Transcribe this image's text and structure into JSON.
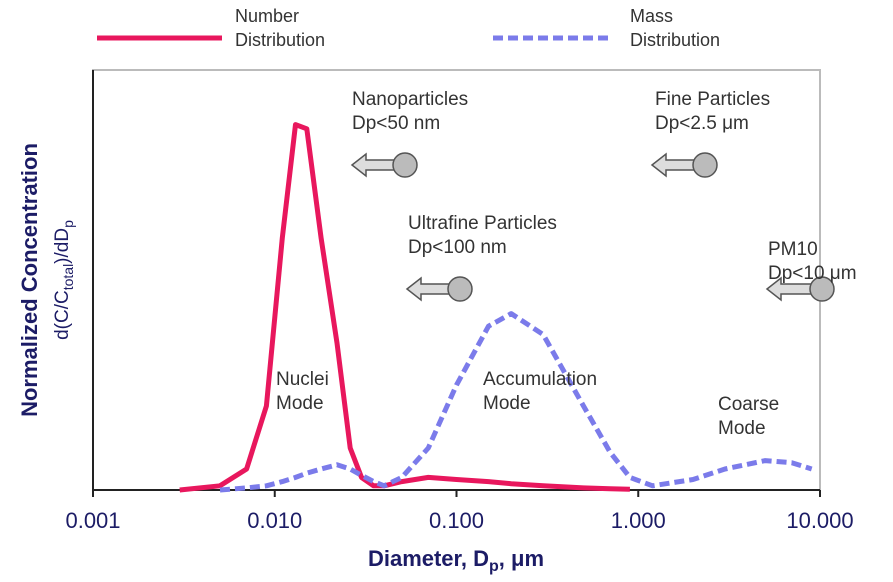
{
  "chart_data": {
    "type": "line",
    "xlabel": [
      "Diameter, D",
      "p",
      ", μm"
    ],
    "ylabel": "Normalized Concentration",
    "ylabel2": [
      "d(C/C",
      "total",
      ")/dD",
      "p"
    ],
    "x": [
      0.003,
      0.005,
      0.007,
      0.009,
      0.011,
      0.013,
      0.015,
      0.018,
      0.022,
      0.026,
      0.03,
      0.035,
      0.04,
      0.05,
      0.07,
      0.1,
      0.15,
      0.2,
      0.3,
      0.5,
      0.7,
      0.9,
      1.2,
      2,
      3,
      5,
      7,
      9
    ],
    "series": [
      {
        "name": "Number\nDistribution",
        "color": "#e8175d",
        "dash": false,
        "values": [
          0,
          0.01,
          0.05,
          0.2,
          0.6,
          0.87,
          0.86,
          0.6,
          0.35,
          0.1,
          0.03,
          0.01,
          0.01,
          0.02,
          0.03,
          0.025,
          0.02,
          0.015,
          0.01,
          0.005,
          0.003,
          0.002,
          null,
          null,
          null,
          null,
          null,
          null
        ]
      },
      {
        "name": "Mass\nDistribution",
        "color": "#7b7bea",
        "dash": true,
        "values": [
          null,
          0,
          0.005,
          0.01,
          0.02,
          0.03,
          0.04,
          0.05,
          0.06,
          0.05,
          0.035,
          0.02,
          0.01,
          0.03,
          0.1,
          0.25,
          0.39,
          0.42,
          0.37,
          0.2,
          0.09,
          0.03,
          0.01,
          0.025,
          0.05,
          0.07,
          0.065,
          0.05
        ]
      }
    ],
    "xlim": [
      0.001,
      10
    ],
    "xticks": [
      0.001,
      {
        "value": 0.01,
        "label": "0.010"
      },
      {
        "value": 0.1,
        "label": "0.100"
      },
      {
        "value": 1,
        "label": "1.000"
      },
      {
        "value": 10,
        "label": "10.000"
      }
    ],
    "xscale": "log",
    "ylim": [
      0,
      1
    ],
    "grid": false,
    "annotations": [
      "Nanoparticles\nDp<50 nm",
      "Fine Particles\nDp<2.5 μm",
      "Ultrafine Particles\nDp<100 nm",
      "PM10\nDp<10 μm",
      "Nuclei\nMode",
      "Accumulation\nMode",
      "Coarse\nMode"
    ]
  }
}
